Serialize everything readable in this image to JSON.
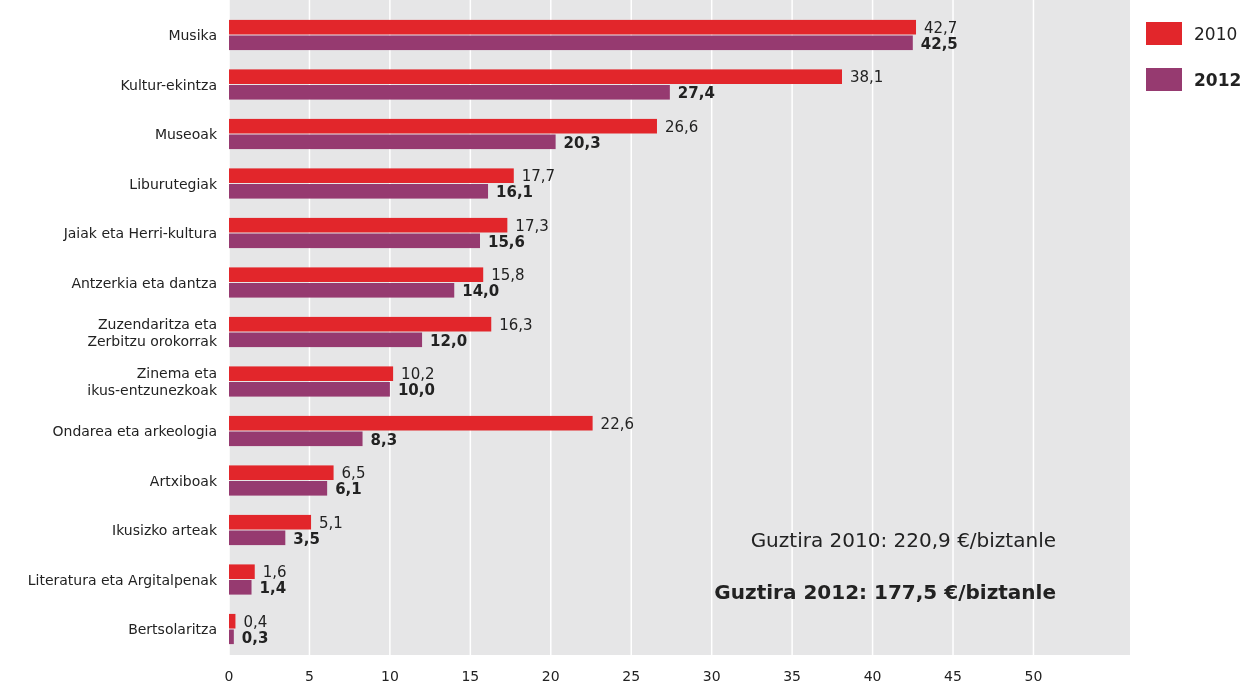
{
  "chart_data": {
    "type": "bar",
    "orientation": "horizontal",
    "categories": [
      "Musika",
      "Kultur-ekintza",
      "Museoak",
      "Liburutegiak",
      "Jaiak eta Herri-kultura",
      "Antzerkia eta dantza",
      "Zuzendaritza eta\nZerbitzu orokorrak",
      "Zinema eta\nikus-entzunezkoak",
      "Ondarea eta arkeologia",
      "Artxiboak",
      "Ikusizko arteak",
      "Literatura eta Argitalpenak",
      "Bertsolaritza"
    ],
    "series": [
      {
        "name": "2010",
        "color": "#e2262b",
        "values": [
          42.7,
          38.1,
          26.6,
          17.7,
          17.3,
          15.8,
          16.3,
          10.2,
          22.6,
          6.5,
          5.1,
          1.6,
          0.4
        ],
        "value_labels": [
          "42,7",
          "38,1",
          "26,6",
          "17,7",
          "17,3",
          "15,8",
          "16,3",
          "10,2",
          "22,6",
          "6,5",
          "5,1",
          "1,6",
          "0,4"
        ]
      },
      {
        "name": "2012",
        "color": "#963a70",
        "values": [
          42.5,
          27.4,
          20.3,
          16.1,
          15.6,
          14.0,
          12.0,
          10.0,
          8.3,
          6.1,
          3.5,
          1.4,
          0.3
        ],
        "value_labels": [
          "42,5",
          "27,4",
          "20,3",
          "16,1",
          "15,6",
          "14,0",
          "12,0",
          "10,0",
          "8,3",
          "6,1",
          "3,5",
          "1,4",
          "0,3"
        ]
      }
    ],
    "xlim": [
      0,
      56
    ],
    "xticks": [
      0,
      5,
      10,
      15,
      20,
      25,
      30,
      35,
      40,
      45,
      50
    ],
    "grid": "x",
    "legend": "top right",
    "annotations": [
      "Guztira 2010: 220,9 €/biztanle",
      "Guztira 2012: 177,5 €/biztanle"
    ]
  }
}
